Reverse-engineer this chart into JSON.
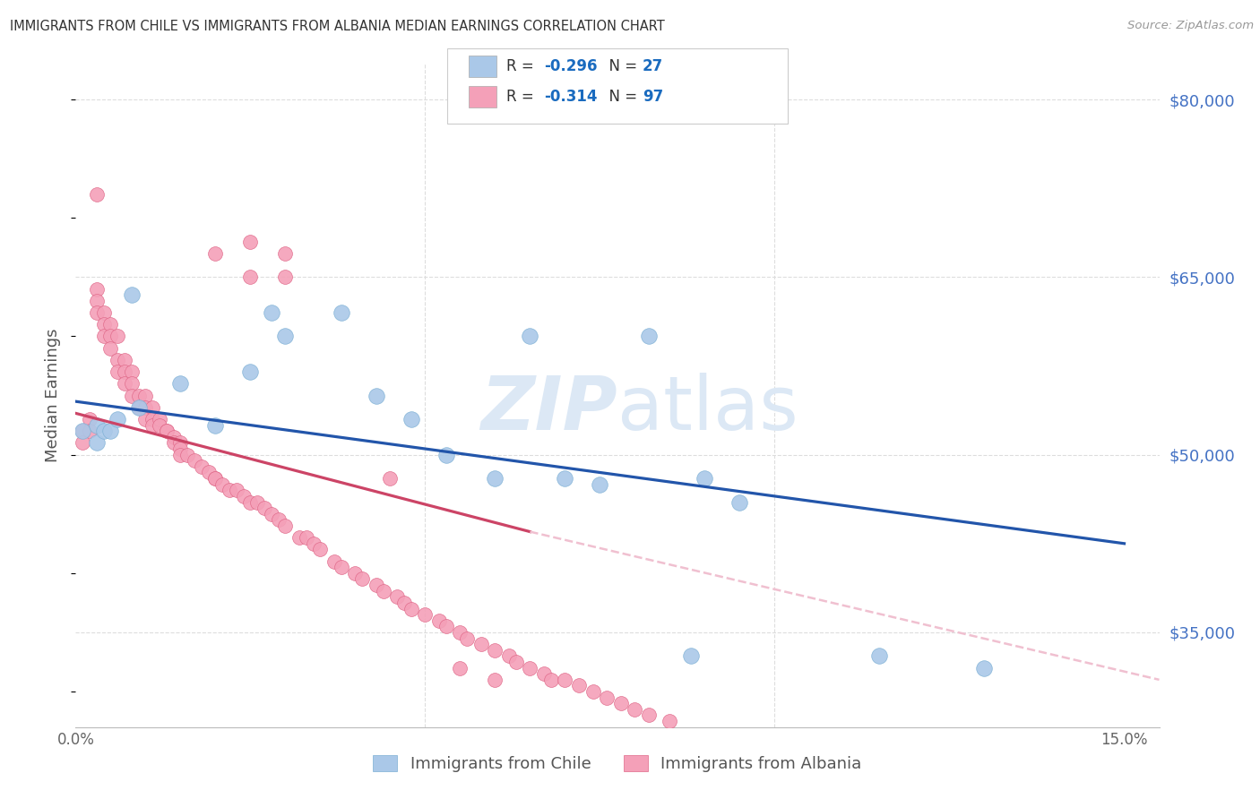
{
  "title": "IMMIGRANTS FROM CHILE VS IMMIGRANTS FROM ALBANIA MEDIAN EARNINGS CORRELATION CHART",
  "source": "Source: ZipAtlas.com",
  "ylabel": "Median Earnings",
  "yticks": [
    35000,
    50000,
    65000,
    80000
  ],
  "ytick_labels": [
    "$35,000",
    "$50,000",
    "$65,000",
    "$80,000"
  ],
  "xmin": 0.0,
  "xmax": 0.155,
  "ymin": 27000,
  "ymax": 83000,
  "legend_r_vals": [
    "-0.296",
    "-0.314"
  ],
  "legend_n_vals": [
    "27",
    "97"
  ],
  "bottom_legend_labels": [
    "Immigrants from Chile",
    "Immigrants from Albania"
  ],
  "chile_color": "#aac8e8",
  "chile_edge": "#7bafd4",
  "albania_color": "#f4a0b8",
  "albania_edge": "#e06888",
  "chile_line_color": "#2255aa",
  "albania_line_color": "#cc4466",
  "albania_dashed_color": "#f0c0d0",
  "title_color": "#333333",
  "source_color": "#999999",
  "grid_color": "#dddddd",
  "ylabel_color": "#555555",
  "yticklabel_color": "#4472c4",
  "background_color": "#ffffff",
  "watermark_color": "#dce8f5",
  "chile_regression": [
    0.0,
    54500,
    0.15,
    42500
  ],
  "albania_regression_solid": [
    0.0,
    53500,
    0.065,
    43500
  ],
  "albania_regression_dashed": [
    0.065,
    43500,
    0.155,
    31000
  ],
  "chile_x": [
    0.001,
    0.003,
    0.003,
    0.004,
    0.005,
    0.006,
    0.008,
    0.009,
    0.015,
    0.02,
    0.025,
    0.028,
    0.03,
    0.038,
    0.043,
    0.048,
    0.053,
    0.06,
    0.065,
    0.07,
    0.075,
    0.082,
    0.088,
    0.09,
    0.095,
    0.115,
    0.13
  ],
  "chile_y": [
    52000,
    51000,
    52500,
    52000,
    52000,
    53000,
    63500,
    54000,
    56000,
    52500,
    57000,
    62000,
    60000,
    62000,
    55000,
    53000,
    50000,
    48000,
    60000,
    48000,
    47500,
    60000,
    33000,
    48000,
    46000,
    33000,
    32000
  ],
  "albania_x": [
    0.001,
    0.001,
    0.002,
    0.002,
    0.003,
    0.003,
    0.003,
    0.004,
    0.004,
    0.004,
    0.005,
    0.005,
    0.005,
    0.006,
    0.006,
    0.006,
    0.007,
    0.007,
    0.007,
    0.008,
    0.008,
    0.008,
    0.009,
    0.009,
    0.01,
    0.01,
    0.01,
    0.011,
    0.011,
    0.011,
    0.012,
    0.012,
    0.013,
    0.013,
    0.014,
    0.014,
    0.015,
    0.015,
    0.015,
    0.016,
    0.017,
    0.018,
    0.019,
    0.02,
    0.02,
    0.021,
    0.022,
    0.023,
    0.024,
    0.025,
    0.025,
    0.026,
    0.027,
    0.028,
    0.029,
    0.03,
    0.03,
    0.032,
    0.033,
    0.034,
    0.035,
    0.037,
    0.038,
    0.04,
    0.041,
    0.043,
    0.044,
    0.046,
    0.047,
    0.048,
    0.05,
    0.052,
    0.053,
    0.055,
    0.056,
    0.058,
    0.06,
    0.062,
    0.063,
    0.065,
    0.067,
    0.068,
    0.07,
    0.072,
    0.074,
    0.076,
    0.078,
    0.08,
    0.082,
    0.085,
    0.02,
    0.025,
    0.03,
    0.055,
    0.06,
    0.045,
    0.003
  ],
  "albania_y": [
    52000,
    51000,
    53000,
    52000,
    64000,
    63000,
    62000,
    62000,
    61000,
    60000,
    61000,
    60000,
    59000,
    60000,
    58000,
    57000,
    58000,
    57000,
    56000,
    57000,
    56000,
    55000,
    55000,
    54000,
    55000,
    54000,
    53000,
    54000,
    53000,
    52500,
    53000,
    52500,
    52000,
    52000,
    51500,
    51000,
    51000,
    50500,
    50000,
    50000,
    49500,
    49000,
    48500,
    48000,
    48000,
    47500,
    47000,
    47000,
    46500,
    46000,
    65000,
    46000,
    45500,
    45000,
    44500,
    44000,
    65000,
    43000,
    43000,
    42500,
    42000,
    41000,
    40500,
    40000,
    39500,
    39000,
    38500,
    38000,
    37500,
    37000,
    36500,
    36000,
    35500,
    35000,
    34500,
    34000,
    33500,
    33000,
    32500,
    32000,
    31500,
    31000,
    31000,
    30500,
    30000,
    29500,
    29000,
    28500,
    28000,
    27500,
    67000,
    68000,
    67000,
    32000,
    31000,
    48000,
    72000
  ]
}
